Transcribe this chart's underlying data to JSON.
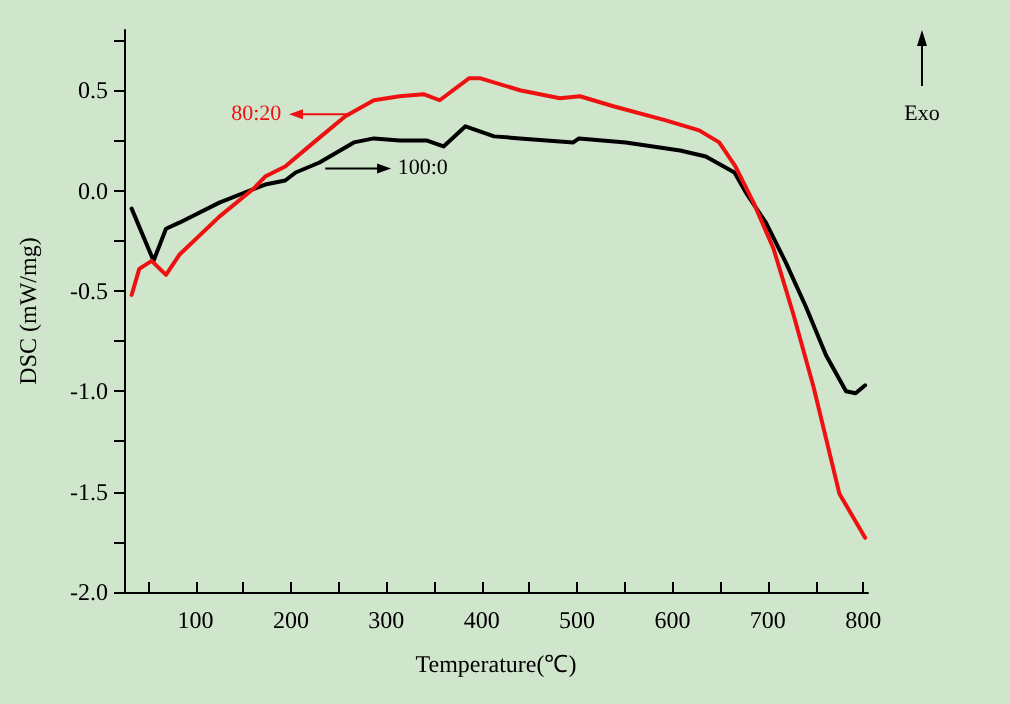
{
  "chart_data": {
    "type": "line",
    "xlabel": "Temperature(℃)",
    "ylabel": "DSC (mW/mg)",
    "xlim": [
      25,
      805
    ],
    "ylim": [
      -2.0,
      0.8
    ],
    "xticks": [
      {
        "value": 50,
        "label": null
      },
      100,
      {
        "value": 150,
        "label": null
      },
      200,
      {
        "value": 250,
        "label": null
      },
      300,
      {
        "value": 350,
        "label": null
      },
      400,
      {
        "value": 450,
        "label": null
      },
      500,
      {
        "value": 550,
        "label": null
      },
      600,
      {
        "value": 650,
        "label": null
      },
      700,
      {
        "value": 750,
        "label": null
      },
      800
    ],
    "yticks": [
      {
        "value": -2,
        "label": "-2.0"
      },
      {
        "value": -1.75,
        "label": null
      },
      -1.5,
      {
        "value": -1.25,
        "label": null
      },
      {
        "value": -1,
        "label": "-1.0"
      },
      {
        "value": -0.75,
        "label": null
      },
      -0.5,
      {
        "value": -0.25,
        "label": null
      },
      {
        "value": 0,
        "label": "0.0"
      },
      {
        "value": 0.25,
        "label": null
      },
      0.5,
      {
        "value": 0.75,
        "label": null
      }
    ],
    "grid": false,
    "legend": "top left",
    "marker": "none",
    "line_style": "solid",
    "annotations": [
      "Exo"
    ],
    "series": [
      {
        "name": "100:0",
        "color": "#000000",
        "x": [
          33,
          56,
          69,
          83,
          125,
          173,
          194,
          205,
          230,
          266,
          287,
          314,
          342,
          360,
          383,
          413,
          440,
          496,
          502,
          551,
          608,
          635,
          665,
          677,
          698,
          719,
          740,
          761,
          782,
          792,
          802
        ],
        "values": [
          -0.09,
          -0.35,
          -0.19,
          -0.16,
          -0.06,
          0.03,
          0.05,
          0.09,
          0.14,
          0.24,
          0.26,
          0.25,
          0.25,
          0.22,
          0.32,
          0.27,
          0.26,
          0.24,
          0.26,
          0.24,
          0.2,
          0.17,
          0.09,
          -0.01,
          -0.16,
          -0.36,
          -0.58,
          -0.82,
          -1.0,
          -1.01,
          -0.97
        ]
      },
      {
        "name": "80:20",
        "color": "#ee1111",
        "x": [
          33,
          41,
          54,
          69,
          83,
          125,
          161,
          173,
          194,
          224,
          257,
          287,
          314,
          339,
          356,
          387,
          398,
          440,
          482,
          503,
          538,
          593,
          628,
          649,
          666,
          685,
          706,
          727,
          748,
          775,
          802
        ],
        "values": [
          -0.52,
          -0.39,
          -0.35,
          -0.42,
          -0.32,
          -0.13,
          0.01,
          0.07,
          0.12,
          0.24,
          0.37,
          0.45,
          0.47,
          0.48,
          0.45,
          0.56,
          0.56,
          0.5,
          0.46,
          0.47,
          0.42,
          0.35,
          0.3,
          0.24,
          0.12,
          -0.06,
          -0.29,
          -0.62,
          -0.98,
          -1.51,
          -1.73
        ]
      }
    ]
  }
}
